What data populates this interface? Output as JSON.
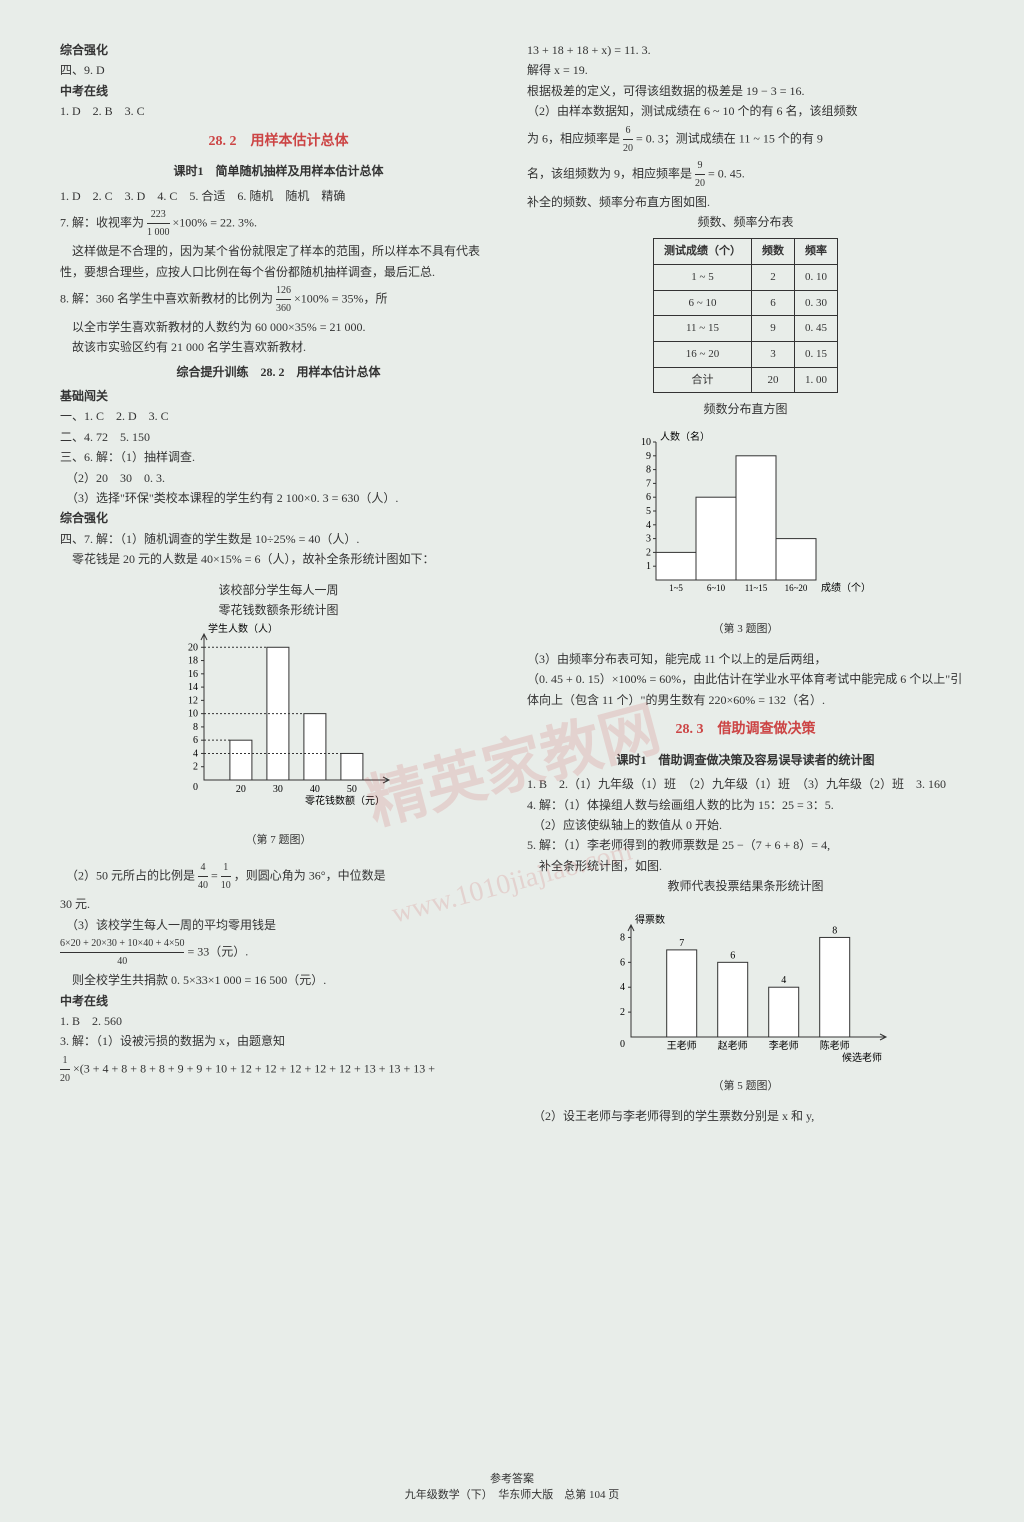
{
  "watermark_main": "精英家教网",
  "watermark_url": "www.1010jiajiao.com",
  "left": {
    "header1": "综合强化",
    "header2": "四、9. D",
    "header3": "中考在线",
    "line1": "1. D　2. B　3. C",
    "title1": "28. 2　用样本估计总体",
    "subtitle1": "课时1　简单随机抽样及用样本估计总体",
    "line2": "1. D　2. C　3. D　4. C　5. 合适　6. 随机　随机　精确",
    "q7_part1": "7. 解：收视率为",
    "q7_frac_num": "223",
    "q7_frac_den": "1 000",
    "q7_part2": "×100% = 22. 3%.",
    "q7_text1": "　这样做是不合理的，因为某个省份就限定了样本的范围，所以样本不具有代表性，要想合理些，应按人口比例在每个省份都随机抽样调查，最后汇总.",
    "q8_part1": "8. 解：360 名学生中喜欢新教材的比例为",
    "q8_frac_num": "126",
    "q8_frac_den": "360",
    "q8_part2": "×100% = 35%，所",
    "q8_text1": "　以全市学生喜欢新教材的人数约为 60 000×35% = 21 000.",
    "q8_text2": "　故该市实验区约有 21 000 名学生喜欢新教材.",
    "subtitle2": "综合提升训练　28. 2　用样本估计总体",
    "header4": "基础闯关",
    "line3": "一、1. C　2. D　3. C",
    "line4": "二、4. 72　5. 150",
    "line5": "三、6. 解：（1）抽样调查.",
    "line6": "　（2）20　30　0. 3.",
    "line7": "　（3）选择\"环保\"类校本课程的学生约有 2 100×0. 3 = 630（人）.",
    "header5": "综合强化",
    "q7b_1": "四、7. 解：（1）随机调查的学生数是 10÷25% = 40（人）.",
    "q7b_2": "　零花钱是 20 元的人数是 40×15% = 6（人），故补全条形统计图如下：",
    "chart1_title1": "该校部分学生每人一周",
    "chart1_title2": "零花钱数额条形统计图",
    "chart1_ylabel": "学生人数（人）",
    "chart1_xlabel": "零花钱数额（元）",
    "chart1_caption": "（第 7 题图）",
    "q7c_1": "　（2）50 元所占的比例是",
    "q7c_frac_num": "4",
    "q7c_frac_den": "40",
    "q7c_2": "=",
    "q7c_frac2_num": "1",
    "q7c_frac2_den": "10",
    "q7c_3": "，则圆心角为 36°，中位数是",
    "q7c_4": "30 元.",
    "q7d_1": "　（3）该校学生每人一周的平均零用钱是",
    "q7d_frac_num": "6×20 + 20×30 + 10×40 + 4×50",
    "q7d_frac_den": "40",
    "q7d_2": "= 33（元）.",
    "q7d_3": "　则全校学生共捐款 0. 5×33×1 000 = 16 500（元）.",
    "header6": "中考在线",
    "line8": "1. B　2. 560",
    "q3_1": "3. 解：（1）设被污损的数据为 x，由题意知",
    "q3_frac_num": "1",
    "q3_frac_den": "20",
    "q3_2": "×(3 + 4 + 8 + 8 + 8 + 9 + 9 + 10 + 12 + 12 + 12 + 12 + 12 + 13 + 13 + 13 +",
    "chart1": {
      "categories": [
        "20",
        "30",
        "40",
        "50"
      ],
      "values": [
        6,
        20,
        10,
        4
      ],
      "yticks": [
        2,
        4,
        6,
        8,
        10,
        12,
        14,
        16,
        18,
        20
      ],
      "bar_color": "#ffffff",
      "bar_stroke": "#333333"
    }
  },
  "right": {
    "line1": "13 + 18 + 18 + x) = 11. 3.",
    "line2": "解得 x = 19.",
    "line3": "根据极差的定义，可得该组数据的极差是 19 − 3 = 16.",
    "line4": "（2）由样本数据知，测试成绩在 6 ~ 10 个的有 6 名，该组频数",
    "line5_part1": "为 6，相应频率是",
    "line5_frac_num": "6",
    "line5_frac_den": "20",
    "line5_part2": "= 0. 3；测试成绩在 11 ~ 15 个的有 9",
    "line6_part1": "名，该组频数为 9，相应频率是",
    "line6_frac_num": "9",
    "line6_frac_den": "20",
    "line6_part2": "= 0. 45.",
    "line7": "补全的频数、频率分布直方图如图.",
    "table_title": "频数、频率分布表",
    "table": {
      "headers": [
        "测试成绩（个）",
        "频数",
        "频率"
      ],
      "rows": [
        [
          "1 ~ 5",
          "2",
          "0. 10"
        ],
        [
          "6 ~ 10",
          "6",
          "0. 30"
        ],
        [
          "11 ~ 15",
          "9",
          "0. 45"
        ],
        [
          "16 ~ 20",
          "3",
          "0. 15"
        ],
        [
          "合计",
          "20",
          "1. 00"
        ]
      ]
    },
    "chart2_title": "频数分布直方图",
    "chart2_ylabel": "人数（名）",
    "chart2_xlabel": "成绩（个）",
    "chart2_caption": "（第 3 题图）",
    "chart2": {
      "categories": [
        "1~5",
        "6~10",
        "11~15",
        "16~20"
      ],
      "values": [
        2,
        6,
        9,
        3
      ],
      "yticks": [
        1,
        2,
        3,
        4,
        5,
        6,
        7,
        8,
        9,
        10
      ]
    },
    "q3c_1": "（3）由频率分布表可知，能完成 11 个以上的是后两组，",
    "q3c_2": "（0. 45 + 0. 15）×100% = 60%，由此估计在学业水平体育考试中能完成 6 个以上\"引体向上（包含 11 个）\"的男生数有 220×60% = 132（名）.",
    "title2": "28. 3　借助调查做决策",
    "subtitle3": "课时1　借助调查做决策及容易误导读者的统计图",
    "line8": "1. B　2.（1）九年级（1）班　（2）九年级（1）班　（3）九年级（2）班　3. 160",
    "q4_1": "4. 解：（1）体操组人数与绘画组人数的比为 15：25 = 3：5.",
    "q4_2": "　（2）应该使纵轴上的数值从 0 开始.",
    "q5_1": "5. 解：（1）李老师得到的教师票数是 25 −（7 + 6 + 8）= 4,",
    "q5_2": "　补全条形统计图，如图.",
    "chart3_title": "教师代表投票结果条形统计图",
    "chart3_ylabel": "得票数",
    "chart3_caption": "（第 5 题图）",
    "chart3": {
      "categories": [
        "王老师",
        "赵老师",
        "李老师",
        "陈老师"
      ],
      "xlabel_extra": "候选老师",
      "values": [
        7,
        6,
        4,
        8
      ],
      "yticks": [
        2,
        4,
        6,
        8
      ]
    },
    "q5_3": "　（2）设王老师与李老师得到的学生票数分别是 x 和 y,"
  },
  "footer_line1": "参考答案",
  "footer_line2": "九年级数学（下）　华东师大版　总第 104 页"
}
